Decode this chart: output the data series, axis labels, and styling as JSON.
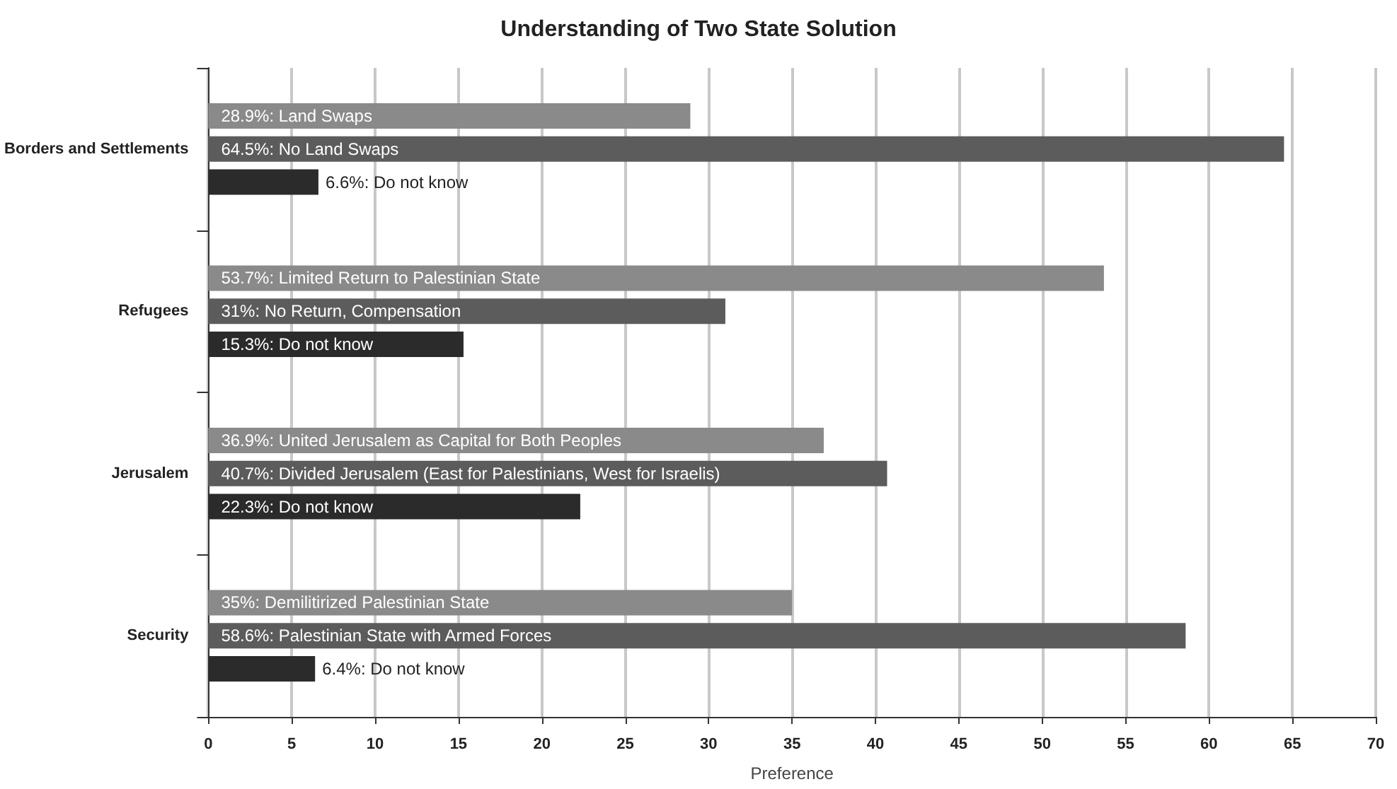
{
  "chart_data": {
    "type": "bar",
    "orientation": "horizontal",
    "title": "Understanding of Two State Solution",
    "xlabel": "Preference",
    "categories": [
      "Borders and Settlements",
      "Refugees",
      "Jerusalem",
      "Security"
    ],
    "series": [
      {
        "color": "#8a8a8a",
        "values": [
          28.9,
          53.7,
          36.9,
          35
        ],
        "value_labels": [
          "28.9%: Land Swaps",
          "53.7%: Limited Return to Palestinian State",
          "36.9%: United Jerusalem as Capital for Both Peoples",
          "35%: Demilitirized Palestinian State"
        ]
      },
      {
        "color": "#5c5c5c",
        "values": [
          64.5,
          31,
          40.7,
          58.6
        ],
        "value_labels": [
          "64.5%: No Land Swaps",
          "31%: No Return, Compensation",
          "40.7%: Divided Jerusalem (East for Palestinians, West for Israelis)",
          "58.6%: Palestinian State with Armed Forces"
        ]
      },
      {
        "color": "#2b2b2b",
        "values": [
          6.6,
          15.3,
          22.3,
          6.4
        ],
        "value_labels": [
          "6.6%: Do not know",
          "15.3%: Do not know",
          "22.3%: Do not know",
          "6.4%: Do not know"
        ]
      }
    ],
    "xlim": [
      0,
      70
    ],
    "xticks": [
      0,
      5,
      10,
      15,
      20,
      25,
      30,
      35,
      40,
      45,
      50,
      55,
      60,
      65,
      70
    ],
    "grid": "x"
  }
}
